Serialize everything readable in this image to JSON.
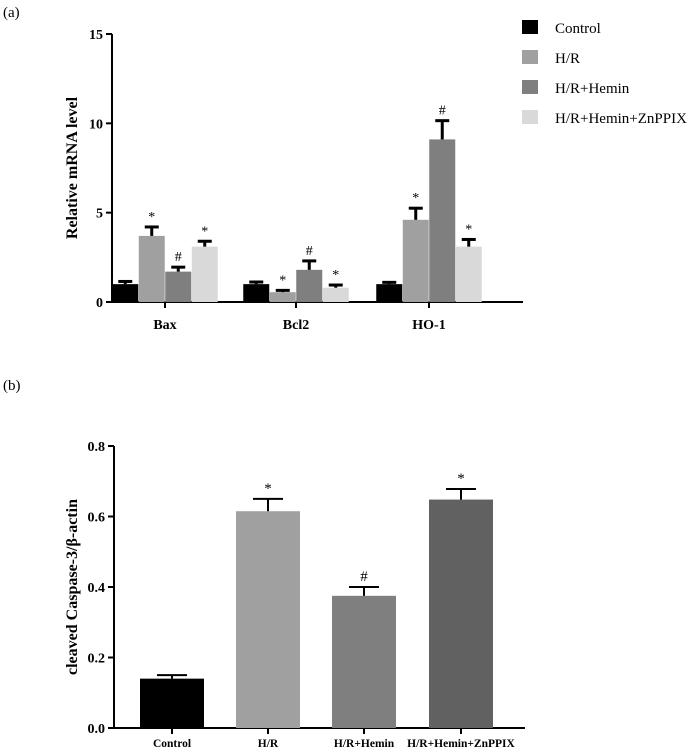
{
  "chart_data": [
    {
      "panel_label": "(a)",
      "type": "bar",
      "ylabel": "Relative mRNA level",
      "ylim": [
        0,
        15
      ],
      "yticks": [
        "0",
        "5",
        "10",
        "15"
      ],
      "categories": [
        "Bax",
        "Bcl2",
        "HO-1"
      ],
      "legend_position": "top-right",
      "series": [
        {
          "name": "Control",
          "color": "#000000",
          "values": [
            1.0,
            1.0,
            1.0
          ],
          "errors": [
            0.15,
            0.12,
            0.1
          ],
          "marks": [
            "",
            "",
            ""
          ]
        },
        {
          "name": "H/R",
          "color": "#a0a0a0",
          "values": [
            3.7,
            0.55,
            4.6
          ],
          "errors": [
            0.5,
            0.1,
            0.65
          ],
          "marks": [
            "*",
            "*",
            "*"
          ]
        },
        {
          "name": "H/R+Hemin",
          "color": "#7f7f7f",
          "values": [
            1.7,
            1.8,
            9.1
          ],
          "errors": [
            0.25,
            0.5,
            1.05
          ],
          "marks": [
            "#",
            "#",
            "#"
          ]
        },
        {
          "name": "H/R+Hemin+ZnPPIX",
          "color": "#d9d9d9",
          "values": [
            3.1,
            0.8,
            3.1
          ],
          "errors": [
            0.3,
            0.15,
            0.4
          ],
          "marks": [
            "*",
            "*",
            "*"
          ]
        }
      ]
    },
    {
      "panel_label": "(b)",
      "type": "bar",
      "ylabel": "cleaved Caspase-3/β-actin",
      "ylim": [
        0,
        0.8
      ],
      "yticks": [
        "0.0",
        "0.2",
        "0.4",
        "0.6",
        "0.8"
      ],
      "categories": [
        "Control",
        "H/R",
        "H/R+Hemin",
        "H/R+Hemin+ZnPPIX"
      ],
      "colors": [
        "#000000",
        "#a0a0a0",
        "#7f7f7f",
        "#616161"
      ],
      "values": [
        0.14,
        0.615,
        0.375,
        0.648
      ],
      "errors": [
        0.01,
        0.035,
        0.025,
        0.03
      ],
      "marks": [
        "",
        "*",
        "#",
        "*"
      ]
    }
  ]
}
